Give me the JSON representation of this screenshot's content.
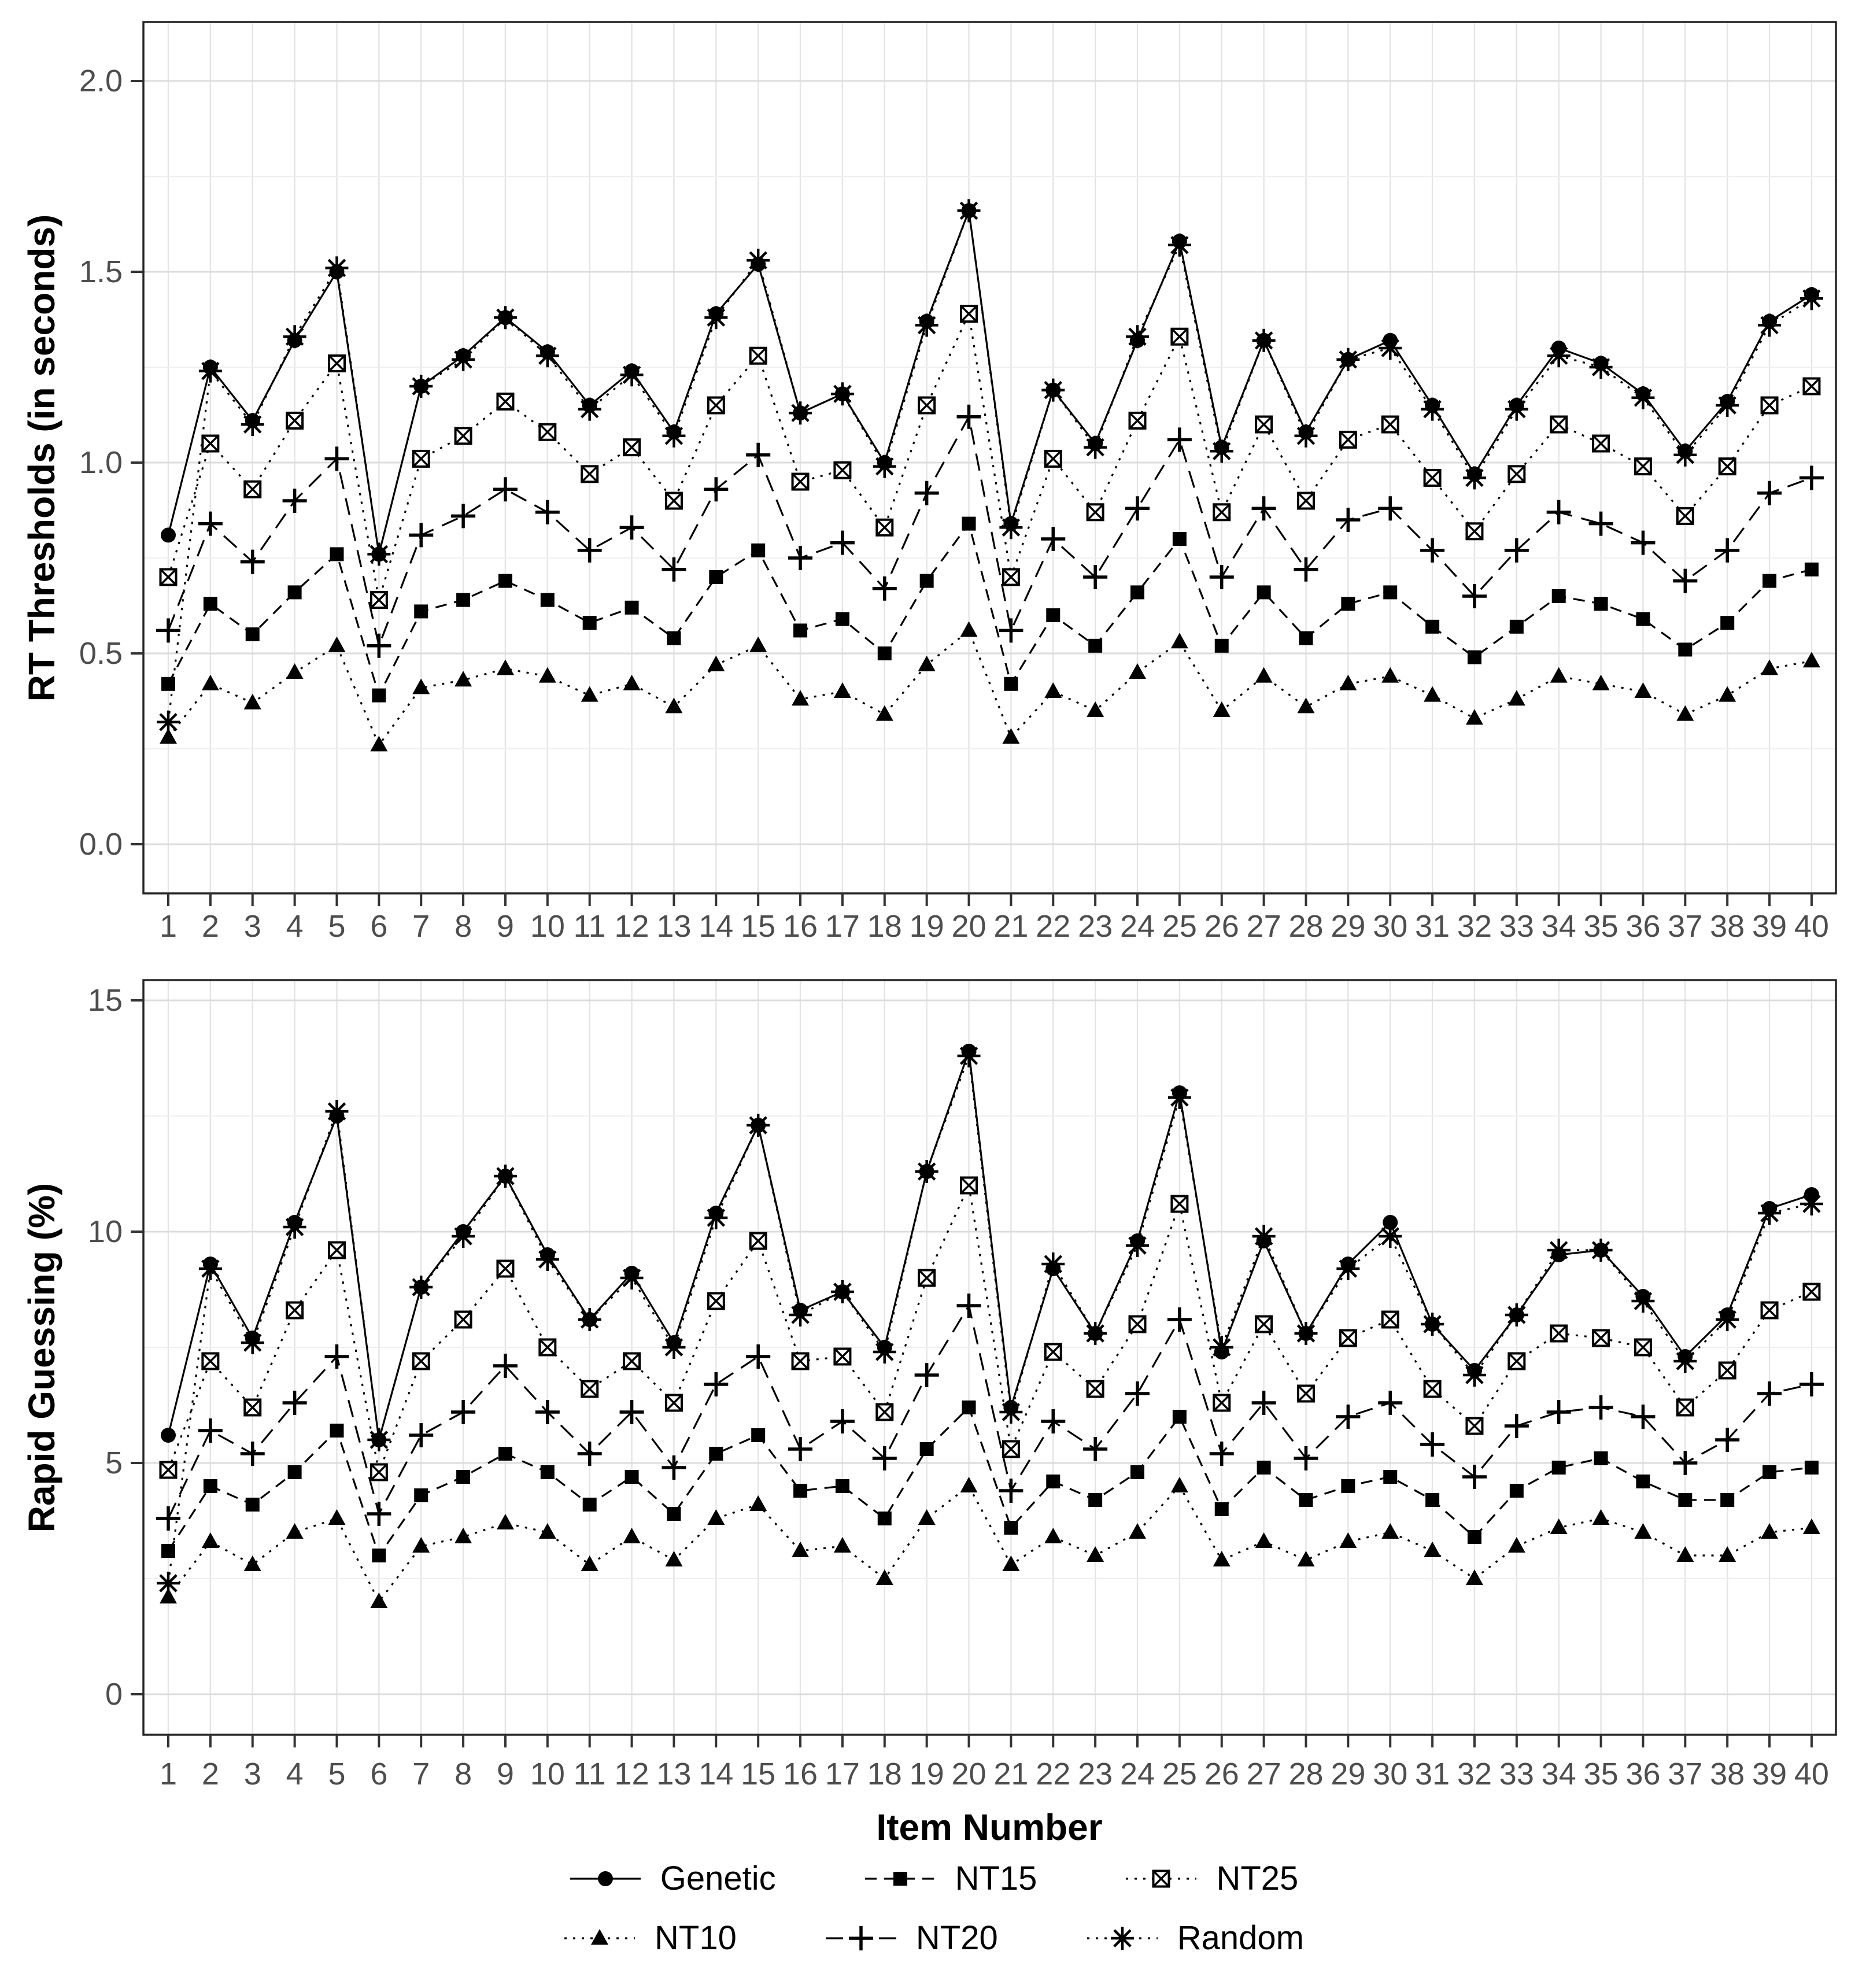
{
  "figure": {
    "background": "#ffffff",
    "top_panel_ylabel": "RT Thresholds (in seconds)",
    "bottom_panel_ylabel": "Rapid Guessing (%)",
    "xlabel": "Item Number"
  },
  "colors": {
    "series": "#000000",
    "grid_major": "#dcdcdc",
    "grid_minor": "#efefef",
    "grid_vertical": "#e4e4e4",
    "panel_border": "#262626",
    "tick_label": "#4d4d4d",
    "tick_mark": "#333333",
    "panel_background": "#ffffff"
  },
  "legend": {
    "rows": [
      [
        {
          "label": "Genetic",
          "marker": "circle",
          "dash": "solid"
        },
        {
          "label": "NT15",
          "marker": "square",
          "dash": "dash"
        },
        {
          "label": "NT25",
          "marker": "crossed-square",
          "dash": "dot"
        }
      ],
      [
        {
          "label": "NT10",
          "marker": "triangle",
          "dash": "dot"
        },
        {
          "label": "NT20",
          "marker": "plus",
          "dash": "longdash"
        },
        {
          "label": "Random",
          "marker": "asterisk",
          "dash": "dot"
        }
      ]
    ]
  },
  "chart_data": [
    {
      "type": "line",
      "panel": "top",
      "title": "",
      "xlabel": "",
      "ylabel": "RT Thresholds (in seconds)",
      "x": [
        1,
        2,
        3,
        4,
        5,
        6,
        7,
        8,
        9,
        10,
        11,
        12,
        13,
        14,
        15,
        16,
        17,
        18,
        19,
        20,
        21,
        22,
        23,
        24,
        25,
        26,
        27,
        28,
        29,
        30,
        31,
        32,
        33,
        34,
        35,
        36,
        37,
        38,
        39,
        40
      ],
      "ytick_labels": [
        "0.0",
        "0.5",
        "1.0",
        "1.5",
        "2.0"
      ],
      "ytick_values": [
        0,
        0.5,
        1,
        1.5,
        2
      ],
      "ylim": [
        -0.13,
        2.15
      ],
      "grid": true,
      "legend_position": "bottom",
      "series": [
        {
          "name": "Genetic",
          "marker": "circle",
          "dash": "solid",
          "values": [
            0.81,
            1.25,
            1.11,
            1.32,
            1.5,
            0.76,
            1.2,
            1.28,
            1.38,
            1.29,
            1.15,
            1.24,
            1.08,
            1.39,
            1.52,
            1.13,
            1.18,
            1.0,
            1.37,
            1.66,
            0.84,
            1.19,
            1.05,
            1.32,
            1.58,
            1.04,
            1.32,
            1.08,
            1.27,
            1.32,
            1.15,
            0.97,
            1.15,
            1.3,
            1.26,
            1.18,
            1.03,
            1.16,
            1.37,
            1.44
          ]
        },
        {
          "name": "NT10",
          "marker": "triangle",
          "dash": "dot",
          "values": [
            0.28,
            0.42,
            0.37,
            0.45,
            0.52,
            0.26,
            0.41,
            0.43,
            0.46,
            0.44,
            0.39,
            0.42,
            0.36,
            0.47,
            0.52,
            0.38,
            0.4,
            0.34,
            0.47,
            0.56,
            0.28,
            0.4,
            0.35,
            0.45,
            0.53,
            0.35,
            0.44,
            0.36,
            0.42,
            0.44,
            0.39,
            0.33,
            0.38,
            0.44,
            0.42,
            0.4,
            0.34,
            0.39,
            0.46,
            0.48
          ]
        },
        {
          "name": "NT15",
          "marker": "square",
          "dash": "dash",
          "values": [
            0.42,
            0.63,
            0.55,
            0.66,
            0.76,
            0.39,
            0.61,
            0.64,
            0.69,
            0.64,
            0.58,
            0.62,
            0.54,
            0.7,
            0.77,
            0.56,
            0.59,
            0.5,
            0.69,
            0.84,
            0.42,
            0.6,
            0.52,
            0.66,
            0.8,
            0.52,
            0.66,
            0.54,
            0.63,
            0.66,
            0.57,
            0.49,
            0.57,
            0.65,
            0.63,
            0.59,
            0.51,
            0.58,
            0.69,
            0.72
          ]
        },
        {
          "name": "NT20",
          "marker": "plus",
          "dash": "longdash",
          "values": [
            0.56,
            0.84,
            0.74,
            0.9,
            1.01,
            0.52,
            0.81,
            0.86,
            0.93,
            0.87,
            0.77,
            0.83,
            0.72,
            0.93,
            1.02,
            0.75,
            0.79,
            0.67,
            0.92,
            1.12,
            0.56,
            0.8,
            0.7,
            0.88,
            1.06,
            0.7,
            0.88,
            0.72,
            0.85,
            0.88,
            0.77,
            0.65,
            0.77,
            0.87,
            0.84,
            0.79,
            0.69,
            0.77,
            0.92,
            0.96
          ]
        },
        {
          "name": "NT25",
          "marker": "crossed-square",
          "dash": "dot",
          "values": [
            0.7,
            1.05,
            0.93,
            1.11,
            1.26,
            0.64,
            1.01,
            1.07,
            1.16,
            1.08,
            0.97,
            1.04,
            0.9,
            1.15,
            1.28,
            0.95,
            0.98,
            0.83,
            1.15,
            1.39,
            0.7,
            1.01,
            0.87,
            1.11,
            1.33,
            0.87,
            1.1,
            0.9,
            1.06,
            1.1,
            0.96,
            0.82,
            0.97,
            1.1,
            1.05,
            0.99,
            0.86,
            0.99,
            1.15,
            1.2
          ]
        },
        {
          "name": "Random",
          "marker": "asterisk",
          "dash": "dot",
          "values": [
            0.32,
            1.24,
            1.1,
            1.33,
            1.51,
            0.76,
            1.2,
            1.27,
            1.38,
            1.28,
            1.14,
            1.23,
            1.07,
            1.38,
            1.53,
            1.13,
            1.18,
            0.99,
            1.36,
            1.66,
            0.83,
            1.19,
            1.04,
            1.33,
            1.57,
            1.03,
            1.32,
            1.07,
            1.27,
            1.3,
            1.14,
            0.96,
            1.14,
            1.28,
            1.25,
            1.17,
            1.02,
            1.15,
            1.36,
            1.43
          ]
        }
      ]
    },
    {
      "type": "line",
      "panel": "bottom",
      "title": "",
      "xlabel": "Item Number",
      "ylabel": "Rapid Guessing (%)",
      "x": [
        1,
        2,
        3,
        4,
        5,
        6,
        7,
        8,
        9,
        10,
        11,
        12,
        13,
        14,
        15,
        16,
        17,
        18,
        19,
        20,
        21,
        22,
        23,
        24,
        25,
        26,
        27,
        28,
        29,
        30,
        31,
        32,
        33,
        34,
        35,
        36,
        37,
        38,
        39,
        40
      ],
      "ytick_labels": [
        "0",
        "5",
        "10",
        "15"
      ],
      "ytick_values": [
        0,
        5,
        10,
        15
      ],
      "ylim": [
        -0.9,
        15.4
      ],
      "grid": true,
      "legend_position": "bottom",
      "series": [
        {
          "name": "Genetic",
          "marker": "circle",
          "dash": "solid",
          "values": [
            5.6,
            9.3,
            7.7,
            10.2,
            12.5,
            5.5,
            8.8,
            10.0,
            11.2,
            9.5,
            8.1,
            9.1,
            7.6,
            10.4,
            12.3,
            8.3,
            8.7,
            7.5,
            11.3,
            13.9,
            6.2,
            9.2,
            7.8,
            9.8,
            13.0,
            7.4,
            9.8,
            7.8,
            9.3,
            10.2,
            8.0,
            7.0,
            8.2,
            9.5,
            9.6,
            8.6,
            7.3,
            8.2,
            10.5,
            10.8
          ]
        },
        {
          "name": "NT10",
          "marker": "triangle",
          "dash": "dot",
          "values": [
            2.1,
            3.3,
            2.8,
            3.5,
            3.8,
            2.0,
            3.2,
            3.4,
            3.7,
            3.5,
            2.8,
            3.4,
            2.9,
            3.8,
            4.1,
            3.1,
            3.2,
            2.5,
            3.8,
            4.5,
            2.8,
            3.4,
            3.0,
            3.5,
            4.5,
            2.9,
            3.3,
            2.9,
            3.3,
            3.5,
            3.1,
            2.5,
            3.2,
            3.6,
            3.8,
            3.5,
            3.0,
            3.0,
            3.5,
            3.6
          ]
        },
        {
          "name": "NT15",
          "marker": "square",
          "dash": "dash",
          "values": [
            3.1,
            4.5,
            4.1,
            4.8,
            5.7,
            3.0,
            4.3,
            4.7,
            5.2,
            4.8,
            4.1,
            4.7,
            3.9,
            5.2,
            5.6,
            4.4,
            4.5,
            3.8,
            5.3,
            6.2,
            3.6,
            4.6,
            4.2,
            4.8,
            6.0,
            4.0,
            4.9,
            4.2,
            4.5,
            4.7,
            4.2,
            3.4,
            4.4,
            4.9,
            5.1,
            4.6,
            4.2,
            4.2,
            4.8,
            4.9
          ]
        },
        {
          "name": "NT20",
          "marker": "plus",
          "dash": "longdash",
          "values": [
            3.8,
            5.7,
            5.2,
            6.3,
            7.3,
            3.9,
            5.6,
            6.1,
            7.1,
            6.1,
            5.2,
            6.1,
            4.9,
            6.7,
            7.3,
            5.3,
            5.9,
            5.1,
            6.9,
            8.4,
            4.4,
            5.9,
            5.3,
            6.5,
            8.1,
            5.2,
            6.3,
            5.1,
            6.0,
            6.3,
            5.4,
            4.7,
            5.8,
            6.1,
            6.2,
            6.0,
            5.0,
            5.5,
            6.5,
            6.7
          ]
        },
        {
          "name": "NT25",
          "marker": "crossed-square",
          "dash": "dot",
          "values": [
            4.85,
            7.2,
            6.2,
            8.3,
            9.6,
            4.8,
            7.2,
            8.1,
            9.2,
            7.5,
            6.6,
            7.2,
            6.3,
            8.5,
            9.8,
            7.2,
            7.3,
            6.1,
            9.0,
            11.0,
            5.3,
            7.4,
            6.6,
            8.0,
            10.6,
            6.3,
            8.0,
            6.5,
            7.7,
            8.1,
            6.6,
            5.8,
            7.2,
            7.8,
            7.7,
            7.5,
            6.2,
            7.0,
            8.3,
            8.7
          ]
        },
        {
          "name": "Random",
          "marker": "asterisk",
          "dash": "dot",
          "values": [
            2.4,
            9.2,
            7.6,
            10.1,
            12.6,
            5.5,
            8.8,
            9.9,
            11.2,
            9.4,
            8.1,
            9.0,
            7.5,
            10.3,
            12.3,
            8.2,
            8.7,
            7.4,
            11.3,
            13.8,
            6.1,
            9.3,
            7.8,
            9.7,
            12.9,
            7.5,
            9.9,
            7.8,
            9.2,
            9.9,
            8.0,
            6.9,
            8.2,
            9.6,
            9.6,
            8.5,
            7.2,
            8.1,
            10.4,
            10.6
          ]
        }
      ]
    }
  ]
}
